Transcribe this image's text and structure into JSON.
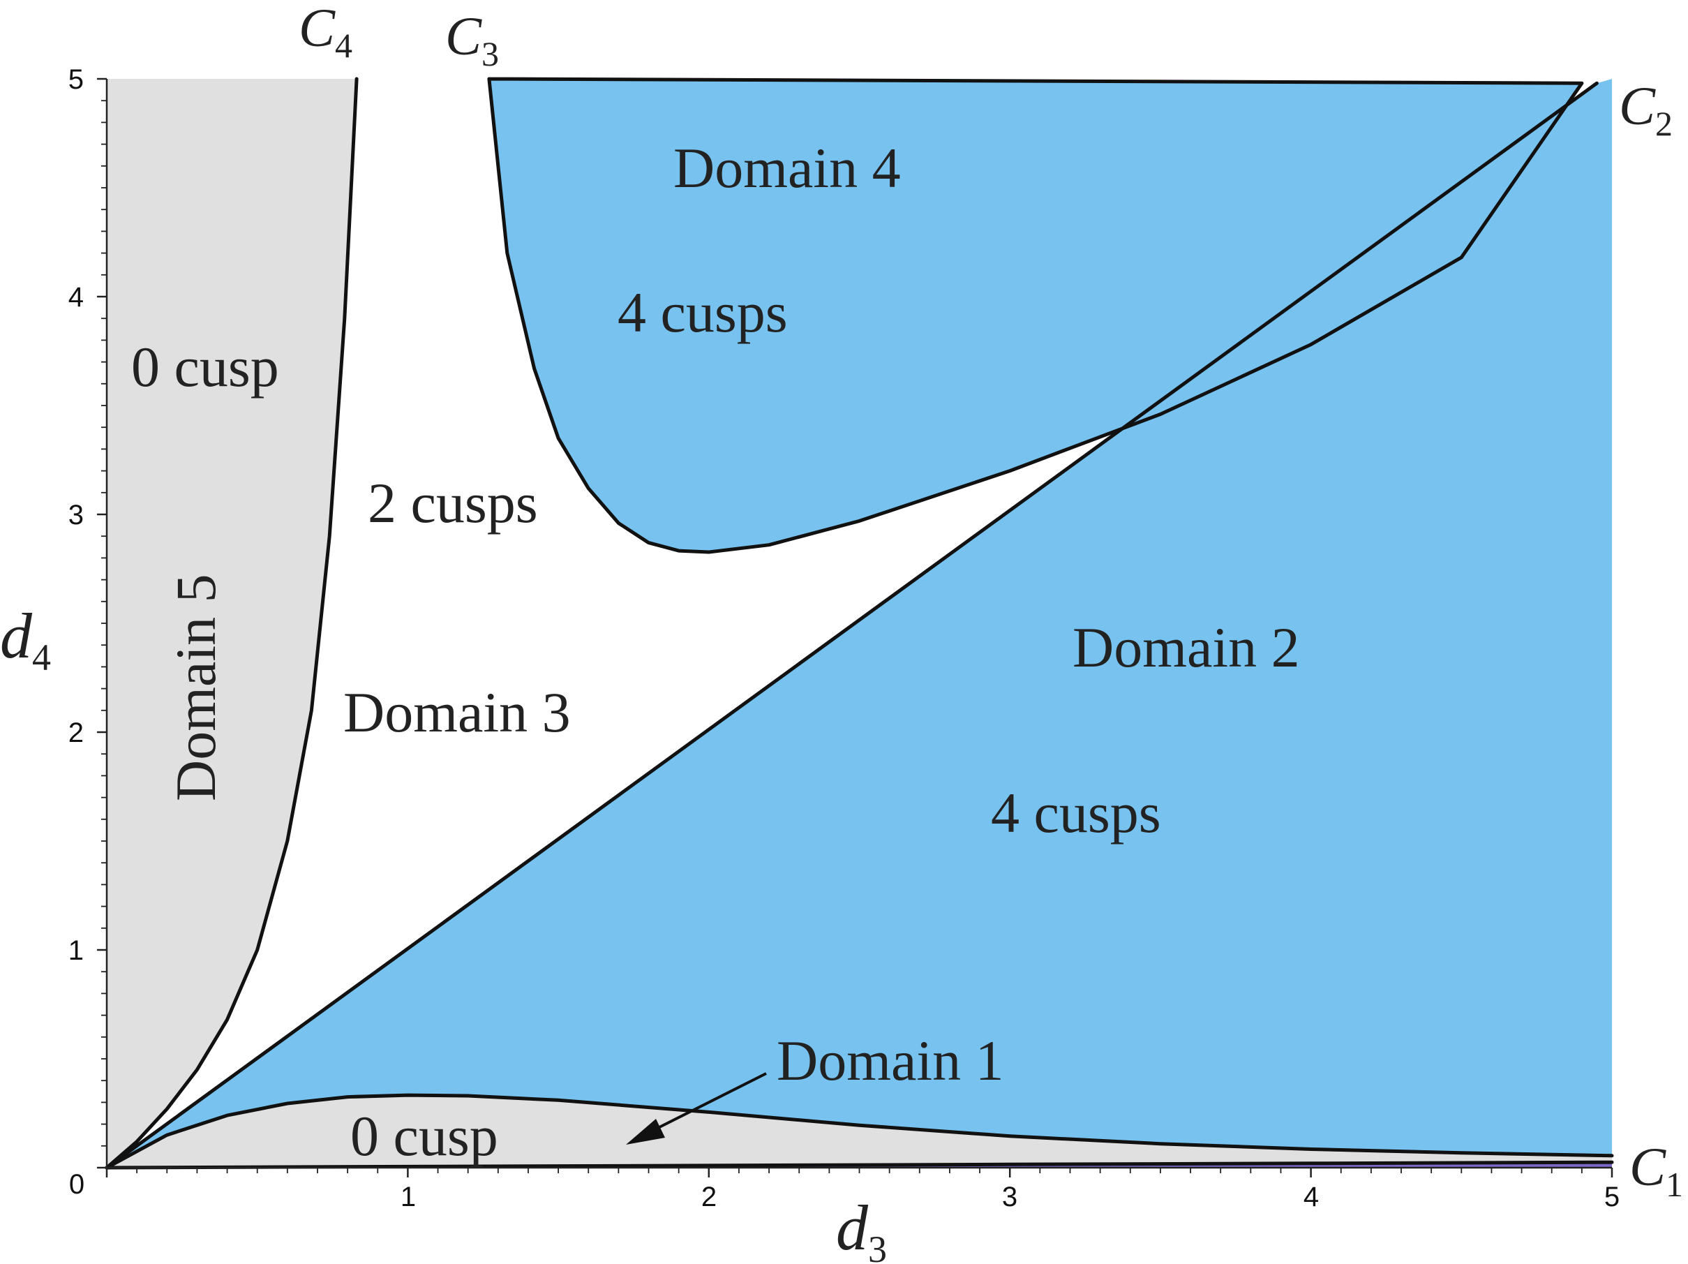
{
  "chart_data": {
    "type": "region-diagram",
    "xlabel": "d",
    "xlabel_sub": "3",
    "ylabel": "d",
    "ylabel_sub": "4",
    "xlim": [
      0,
      5
    ],
    "ylim": [
      0,
      5
    ],
    "x_ticks": [
      "0",
      "1",
      "2",
      "3",
      "4",
      "5"
    ],
    "y_ticks": [
      "1",
      "2",
      "3",
      "4",
      "5"
    ],
    "colors": {
      "four_cusp_domain": "#77c2ee",
      "zero_cusp_domain": "#e0e0e0",
      "two_cusp_domain": "#ffffff",
      "curve": "#111111",
      "axis_strip": "#7b68c8"
    },
    "curves": [
      {
        "name": "C",
        "sub": "1",
        "points": [
          [
            0,
            0
          ],
          [
            1,
            0.005
          ],
          [
            2,
            0.01
          ],
          [
            3,
            0.015
          ],
          [
            4,
            0.02
          ],
          [
            5,
            0.025
          ]
        ]
      },
      {
        "name": "C",
        "sub": "2",
        "points": [
          [
            0,
            0
          ],
          [
            4.95,
            4.98
          ]
        ]
      },
      {
        "name": "C",
        "sub": "3",
        "points": [
          [
            1.27,
            5
          ],
          [
            1.33,
            4.2
          ],
          [
            1.42,
            3.67
          ],
          [
            1.5,
            3.35
          ],
          [
            1.6,
            3.12
          ],
          [
            1.7,
            2.96
          ],
          [
            1.8,
            2.87
          ],
          [
            1.9,
            2.833
          ],
          [
            2.0,
            2.827
          ],
          [
            2.2,
            2.86
          ],
          [
            2.5,
            2.97
          ],
          [
            3.0,
            3.2
          ],
          [
            3.5,
            3.46
          ],
          [
            4.0,
            3.78
          ],
          [
            4.5,
            4.18
          ],
          [
            4.9,
            4.98
          ]
        ]
      },
      {
        "name": "C",
        "sub": "4",
        "points": [
          [
            0,
            0
          ],
          [
            0.1,
            0.12
          ],
          [
            0.2,
            0.27
          ],
          [
            0.3,
            0.45
          ],
          [
            0.4,
            0.68
          ],
          [
            0.5,
            1.0
          ],
          [
            0.6,
            1.5
          ],
          [
            0.68,
            2.1
          ],
          [
            0.74,
            2.9
          ],
          [
            0.79,
            3.9
          ],
          [
            0.83,
            5.0
          ]
        ]
      },
      {
        "name": "",
        "points": [
          [
            0,
            0
          ],
          [
            0.2,
            0.15
          ],
          [
            0.4,
            0.24
          ],
          [
            0.6,
            0.295
          ],
          [
            0.8,
            0.325
          ],
          [
            1.0,
            0.333
          ],
          [
            1.2,
            0.33
          ],
          [
            1.5,
            0.31
          ],
          [
            2.0,
            0.255
          ],
          [
            2.5,
            0.195
          ],
          [
            3.0,
            0.145
          ],
          [
            3.5,
            0.11
          ],
          [
            4.0,
            0.085
          ],
          [
            4.5,
            0.068
          ],
          [
            5.0,
            0.055
          ]
        ]
      }
    ],
    "annotations": {
      "domain1": "Domain 1",
      "domain1_cusps": "0 cusp",
      "domain2": "Domain 2",
      "domain2_cusps": "4 cusps",
      "domain3": "Domain 3",
      "domain3_cusps": "2 cusps",
      "domain4": "Domain 4",
      "domain4_cusps": "4 cusps",
      "domain5": "Domain 5",
      "domain5_cusps": "0 cusp"
    }
  }
}
